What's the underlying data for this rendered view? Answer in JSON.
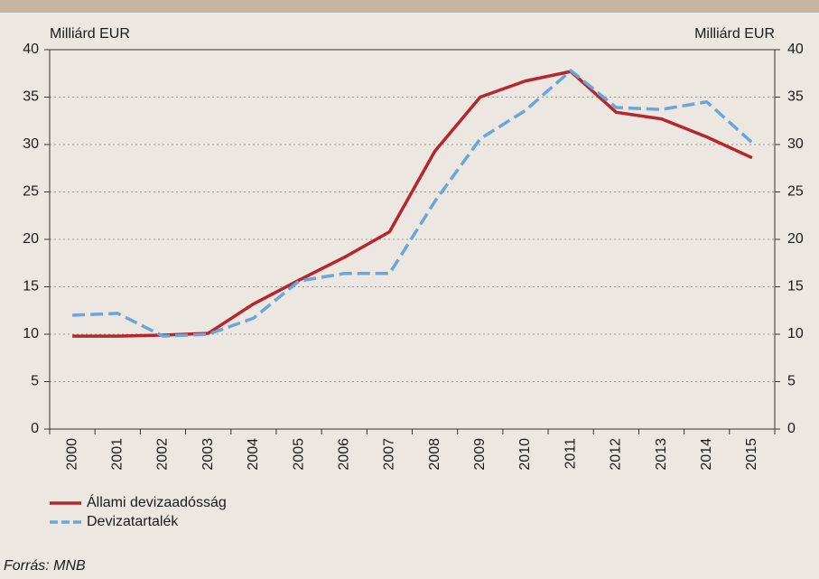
{
  "chart_data": {
    "type": "line",
    "y_label": "Milliárd EUR",
    "y2_label": "Milliárd EUR",
    "categories": [
      "2000",
      "2001",
      "2002",
      "2003",
      "2004",
      "2005",
      "2006",
      "2007",
      "2008",
      "2009",
      "2010",
      "2011",
      "2012",
      "2013",
      "2014",
      "2015"
    ],
    "series": [
      {
        "name": "Állami devizaadósság",
        "color": "#b5272d",
        "dash": false,
        "values": [
          9.8,
          9.8,
          9.9,
          10.1,
          13.2,
          15.7,
          18.1,
          20.8,
          29.3,
          35.0,
          36.7,
          37.7,
          33.4,
          32.7,
          30.8,
          28.6
        ]
      },
      {
        "name": "Devizatartalék",
        "color": "#6aa6d8",
        "dash": true,
        "values": [
          12.0,
          12.2,
          9.8,
          10.0,
          11.7,
          15.6,
          16.4,
          16.4,
          24.0,
          30.6,
          33.6,
          37.8,
          33.9,
          33.7,
          34.5,
          30.2
        ]
      }
    ],
    "ylim": [
      0,
      40
    ],
    "yticks": [
      0,
      5,
      10,
      15,
      20,
      25,
      30,
      35,
      40
    ],
    "y2lim": [
      0,
      40
    ],
    "y2ticks": [
      0,
      5,
      10,
      15,
      20,
      25,
      30,
      35,
      40
    ],
    "grid": true,
    "legend": "bottom-left",
    "source": "Forrás: MNB"
  }
}
